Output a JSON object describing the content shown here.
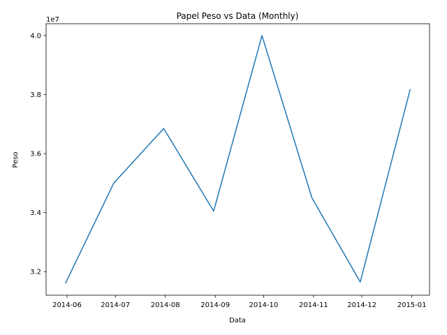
{
  "chart_data": {
    "type": "line",
    "title": "Papel Peso vs Data (Monthly)",
    "xlabel": "Data",
    "ylabel": "Peso",
    "y_offset_label": "1e7",
    "x_ticks": [
      "2014-06",
      "2014-07",
      "2014-08",
      "2014-09",
      "2014-10",
      "2014-11",
      "2014-12",
      "2015-01"
    ],
    "y_ticks": [
      "3.2",
      "3.4",
      "3.6",
      "3.8",
      "4.0"
    ],
    "y_tick_values": [
      32000000,
      34000000,
      36000000,
      38000000,
      40000000
    ],
    "xlim": [
      "2014-05-19",
      "2015-01-12"
    ],
    "ylim": [
      31200000,
      40400000
    ],
    "series": [
      {
        "color": "#1f77b4",
        "x": [
          "2014-05-31",
          "2014-06-30",
          "2014-07-31",
          "2014-08-31",
          "2014-09-30",
          "2014-10-31",
          "2014-11-30",
          "2014-12-31"
        ],
        "values": [
          31600000,
          35000000,
          36850000,
          34050000,
          40000000,
          34500000,
          31650000,
          38180000
        ]
      }
    ],
    "grid": false,
    "legend": "none"
  }
}
